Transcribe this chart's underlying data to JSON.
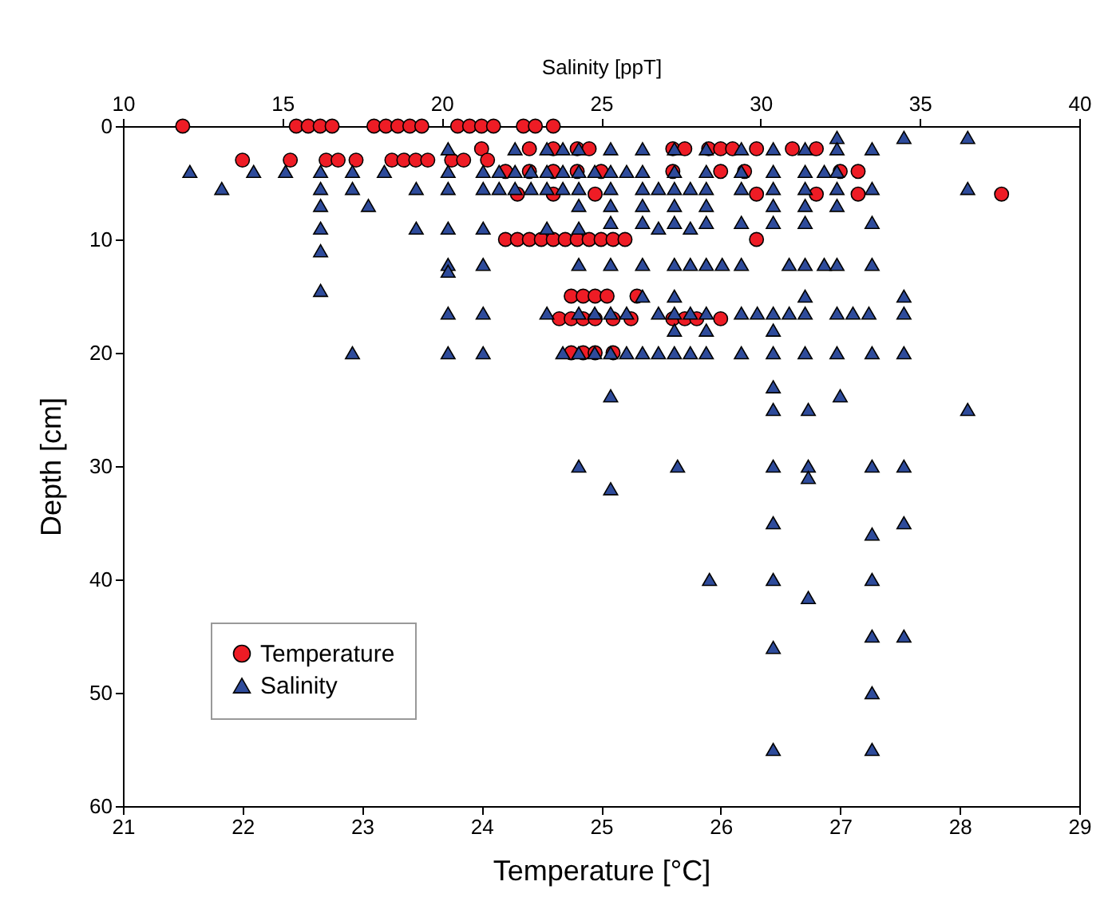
{
  "chart_data": {
    "type": "scatter",
    "xlabel": "Temperature [°C]",
    "x2label": "Salinity [ppT]",
    "ylabel": "Depth [cm]",
    "xlim": [
      21,
      29
    ],
    "xticks": [
      21,
      22,
      23,
      24,
      25,
      26,
      27,
      28,
      29
    ],
    "x2lim": [
      10,
      40
    ],
    "x2ticks": [
      10,
      15,
      20,
      25,
      30,
      35,
      40
    ],
    "ylim": [
      60,
      0
    ],
    "yticks": [
      0,
      10,
      20,
      30,
      40,
      50,
      60
    ],
    "grid": false,
    "legend": "bottom left",
    "series": [
      {
        "name": "Temperature",
        "color": "#ee1c25",
        "marker": "circle",
        "x": [
          21.5,
          22.45,
          22.55,
          22.65,
          22.75,
          23.1,
          23.2,
          23.3,
          23.4,
          23.5,
          23.8,
          23.9,
          24.0,
          24.1,
          24.35,
          24.45,
          24.6,
          24.0,
          24.4,
          24.6,
          24.8,
          24.9,
          25.6,
          25.7,
          25.9,
          26.0,
          26.1,
          26.3,
          26.6,
          26.8,
          22.0,
          22.4,
          22.7,
          22.8,
          22.95,
          23.25,
          23.35,
          23.45,
          23.55,
          23.75,
          23.85,
          24.05,
          24.2,
          24.4,
          24.6,
          24.8,
          25.0,
          25.6,
          26.0,
          26.2,
          27.0,
          27.15,
          24.3,
          24.6,
          24.95,
          26.3,
          26.8,
          27.15,
          28.35,
          24.2,
          24.3,
          24.4,
          24.5,
          24.6,
          24.7,
          24.8,
          24.9,
          25.0,
          25.1,
          25.2,
          26.3,
          24.75,
          24.85,
          24.95,
          25.05,
          25.3,
          24.65,
          24.75,
          24.85,
          24.95,
          25.1,
          25.25,
          25.6,
          25.7,
          25.8,
          26.0,
          24.75,
          24.85,
          24.95,
          25.1
        ],
        "values": [
          0,
          0,
          0,
          0,
          0,
          0,
          0,
          0,
          0,
          0,
          0,
          0,
          0,
          0,
          0,
          0,
          0,
          2,
          2,
          2,
          2,
          2,
          2,
          2,
          2,
          2,
          2,
          2,
          2,
          2,
          3,
          3,
          3,
          3,
          3,
          3,
          3,
          3,
          3,
          3,
          3,
          3,
          4,
          4,
          4,
          4,
          4,
          4,
          4,
          4,
          4,
          4,
          6,
          6,
          6,
          6,
          6,
          6,
          6,
          10,
          10,
          10,
          10,
          10,
          10,
          10,
          10,
          10,
          10,
          10,
          10,
          15,
          15,
          15,
          15,
          15,
          17,
          17,
          17,
          17,
          17,
          17,
          17,
          17,
          17,
          17,
          20,
          20,
          20,
          20
        ]
      },
      {
        "name": "Salinity",
        "color": "#2e4b9b",
        "marker": "triangle",
        "axis": "x2",
        "x": [
          32.4,
          34.5,
          36.5,
          20.2,
          22.3,
          23.3,
          23.8,
          24.3,
          25.3,
          26.3,
          27.3,
          28.3,
          29.4,
          30.4,
          31.4,
          32.4,
          33.5,
          12.1,
          14.1,
          15.1,
          16.2,
          17.2,
          18.2,
          20.2,
          21.3,
          21.8,
          22.3,
          22.8,
          23.3,
          23.8,
          24.3,
          24.8,
          25.3,
          25.8,
          26.3,
          27.3,
          28.3,
          29.4,
          30.4,
          31.4,
          32.0,
          32.4,
          13.1,
          16.2,
          17.2,
          19.2,
          20.2,
          21.3,
          21.8,
          22.3,
          22.8,
          23.3,
          23.8,
          24.3,
          25.3,
          26.3,
          26.8,
          27.3,
          27.8,
          28.3,
          29.4,
          30.4,
          31.4,
          32.4,
          33.5,
          36.5,
          16.2,
          17.7,
          24.3,
          25.3,
          26.3,
          27.3,
          28.3,
          30.4,
          31.4,
          32.4,
          25.3,
          26.3,
          27.3,
          28.3,
          29.4,
          30.4,
          31.4,
          33.5,
          16.2,
          19.2,
          20.2,
          21.3,
          23.3,
          24.3,
          26.8,
          27.8,
          16.2,
          20.2,
          21.3,
          24.3,
          25.3,
          26.3,
          27.3,
          27.8,
          28.3,
          28.8,
          29.4,
          30.9,
          31.4,
          32.0,
          32.4,
          33.5,
          20.2,
          16.2,
          26.3,
          27.3,
          31.4,
          34.5,
          20.2,
          21.3,
          23.3,
          24.3,
          24.8,
          25.3,
          25.8,
          26.8,
          27.3,
          27.8,
          28.3,
          29.4,
          29.9,
          30.4,
          30.9,
          31.4,
          32.4,
          32.9,
          33.4,
          34.5,
          27.3,
          28.3,
          30.4,
          17.2,
          20.2,
          21.3,
          23.8,
          24.3,
          24.8,
          25.3,
          25.8,
          26.3,
          26.8,
          27.3,
          27.8,
          28.3,
          29.4,
          30.4,
          31.4,
          32.4,
          33.5,
          34.5,
          25.3,
          30.4,
          30.4,
          31.5,
          32.5,
          36.5,
          24.3,
          27.4,
          30.4,
          31.5,
          31.5,
          33.5,
          34.5,
          25.3,
          30.4,
          33.5,
          34.5,
          28.4,
          30.4,
          33.5,
          31.5,
          30.4,
          33.5,
          34.5,
          33.5,
          30.4,
          33.5
        ],
        "values": [
          1,
          1,
          1,
          2,
          2,
          2,
          2,
          2,
          2,
          2,
          2,
          2,
          2,
          2,
          2,
          2,
          2,
          4,
          4,
          4,
          4,
          4,
          4,
          4,
          4,
          4,
          4,
          4,
          4,
          4,
          4,
          4,
          4,
          4,
          4,
          4,
          4,
          4,
          4,
          4,
          4,
          4,
          5.5,
          5.5,
          5.5,
          5.5,
          5.5,
          5.5,
          5.5,
          5.5,
          5.5,
          5.5,
          5.5,
          5.5,
          5.5,
          5.5,
          5.5,
          5.5,
          5.5,
          5.5,
          5.5,
          5.5,
          5.5,
          5.5,
          5.5,
          5.5,
          7,
          7,
          7,
          7,
          7,
          7,
          7,
          7,
          7,
          7,
          8.5,
          8.5,
          8.5,
          8.5,
          8.5,
          8.5,
          8.5,
          8.5,
          9,
          9,
          9,
          9,
          9,
          9,
          9,
          9,
          11,
          12.2,
          12.2,
          12.2,
          12.2,
          12.2,
          12.2,
          12.2,
          12.2,
          12.2,
          12.2,
          12.2,
          12.2,
          12.2,
          12.2,
          12.2,
          12.8,
          14.5,
          15,
          15,
          15,
          15,
          16.5,
          16.5,
          16.5,
          16.5,
          16.5,
          16.5,
          16.5,
          16.5,
          16.5,
          16.5,
          16.5,
          16.5,
          16.5,
          16.5,
          16.5,
          16.5,
          16.5,
          16.5,
          16.5,
          16.5,
          18,
          18,
          18,
          20,
          20,
          20,
          20,
          20,
          20,
          20,
          20,
          20,
          20,
          20,
          20,
          20,
          20,
          20,
          20,
          20,
          20,
          20,
          23.8,
          23,
          25,
          25,
          23.8,
          25,
          30,
          30,
          30,
          30,
          31,
          30,
          30,
          32,
          35,
          36,
          35,
          40,
          40,
          40,
          41.6,
          46,
          45,
          45,
          50,
          55,
          55
        ]
      }
    ]
  }
}
